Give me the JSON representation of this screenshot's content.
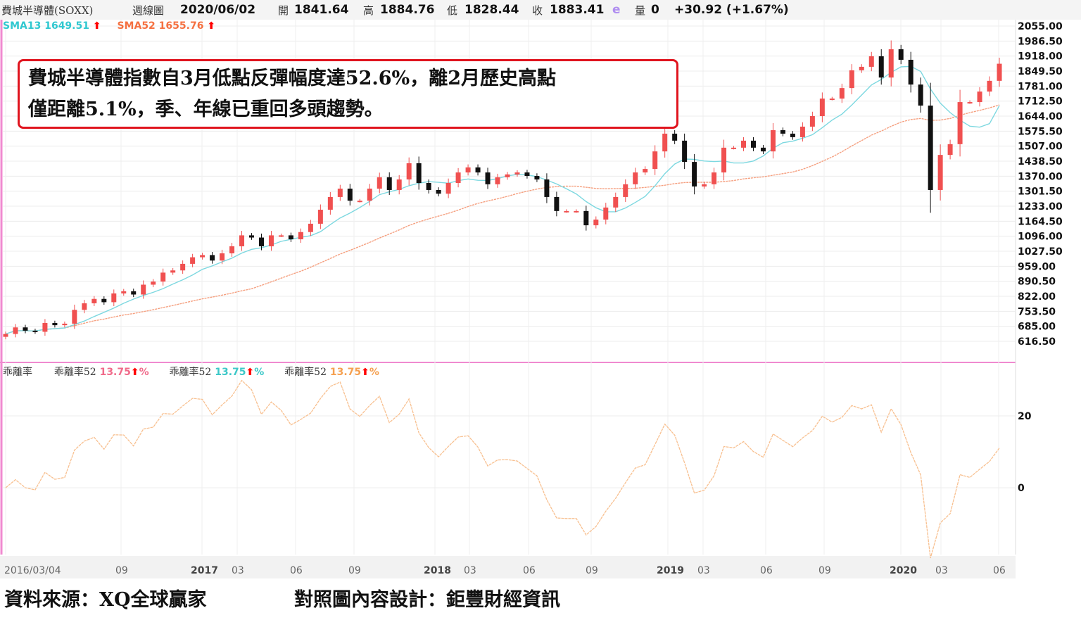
{
  "header": {
    "name": "費城半導體(SOXX)",
    "period": "週線圖",
    "date": "2020/06/02",
    "open_label": "開",
    "open": "1841.64",
    "high_label": "高",
    "high": "1884.76",
    "low_label": "低",
    "low": "1828.44",
    "close_label": "收",
    "close": "1883.41",
    "e_mark": "e",
    "vol_label": "量",
    "vol": "0",
    "change": "+30.92 (+1.67%)"
  },
  "sma": {
    "sma13": "SMA13 1649.51",
    "sma52": "SMA52 1655.76",
    "arrow": "⬆"
  },
  "bias": {
    "title": "乖離率",
    "items": [
      {
        "label": "乖離率52",
        "value": "13.75",
        "unit": "%",
        "color": "#f06a8a"
      },
      {
        "label": "乖離率52",
        "value": "13.75",
        "unit": "%",
        "color": "#3cc8c8"
      },
      {
        "label": "乖離率52",
        "value": "13.75",
        "unit": "%",
        "color": "#f5a050"
      }
    ]
  },
  "annotation": {
    "line1": "費城半導體指數自3月低點反彈幅度達52.6%，離2月歷史高點",
    "line2": "僅距離5.1%，季、年線已重回多頭趨勢。"
  },
  "footer": {
    "source": "資料來源：XQ全球贏家",
    "design": "對照圖內容設計：鉅豐財經資訊"
  },
  "colors": {
    "up": "#f05050",
    "down": "#111111",
    "sma13": "#7dd8e0",
    "sma52": "#f5a080",
    "bias": "#f8c090",
    "border": "#f08ad0"
  },
  "chart_data": [
    {
      "type": "candlestick",
      "yticks": [
        "2055.00",
        "1986.50",
        "1918.00",
        "1849.50",
        "1781.00",
        "1712.50",
        "1644.00",
        "1575.50",
        "1507.00",
        "1438.50",
        "1370.00",
        "1301.50",
        "1233.00",
        "1164.50",
        "1096.00",
        "1027.50",
        "959.00",
        "890.50",
        "822.00",
        "753.50",
        "685.00",
        "616.50"
      ],
      "ylim": [
        616.5,
        2055
      ],
      "xticks": [
        {
          "label": "2016/03/04",
          "bold": false
        },
        {
          "label": "09",
          "bold": false
        },
        {
          "label": "2017",
          "bold": true
        },
        {
          "label": "03",
          "bold": false
        },
        {
          "label": "06",
          "bold": false
        },
        {
          "label": "09",
          "bold": false
        },
        {
          "label": "2018",
          "bold": true
        },
        {
          "label": "03",
          "bold": false
        },
        {
          "label": "06",
          "bold": false
        },
        {
          "label": "09",
          "bold": false
        },
        {
          "label": "2019",
          "bold": true
        },
        {
          "label": "03",
          "bold": false
        },
        {
          "label": "06",
          "bold": false
        },
        {
          "label": "09",
          "bold": false
        },
        {
          "label": "2020",
          "bold": true
        },
        {
          "label": "03",
          "bold": false
        },
        {
          "label": "06",
          "bold": false
        }
      ],
      "close": [
        650,
        680,
        665,
        660,
        700,
        690,
        697,
        760,
        790,
        810,
        795,
        835,
        845,
        830,
        875,
        889,
        930,
        940,
        970,
        1000,
        1010,
        985,
        1018,
        1050,
        1100,
        1090,
        1050,
        1100,
        1100,
        1082,
        1115,
        1153,
        1217,
        1275,
        1313,
        1258,
        1258,
        1313,
        1365,
        1307,
        1355,
        1429,
        1339,
        1307,
        1290,
        1339,
        1387,
        1410,
        1387,
        1333,
        1365,
        1378,
        1387,
        1371,
        1355,
        1275,
        1211,
        1211,
        1211,
        1146,
        1172,
        1227,
        1275,
        1333,
        1387,
        1403,
        1483,
        1564,
        1532,
        1435,
        1323,
        1333,
        1387,
        1500,
        1500,
        1532,
        1500,
        1483,
        1580,
        1564,
        1548,
        1596,
        1644,
        1724,
        1724,
        1772,
        1853,
        1869,
        1917,
        1820,
        1949,
        1901,
        1788,
        1692,
        1307,
        1467,
        1516,
        1708,
        1708,
        1756,
        1805,
        1883
      ],
      "series": [
        {
          "name": "SMA13"
        },
        {
          "name": "SMA52"
        }
      ]
    },
    {
      "type": "line",
      "title": "乖離率",
      "yticks": [
        "20",
        "0"
      ],
      "ylim": [
        -18,
        30
      ]
    }
  ]
}
